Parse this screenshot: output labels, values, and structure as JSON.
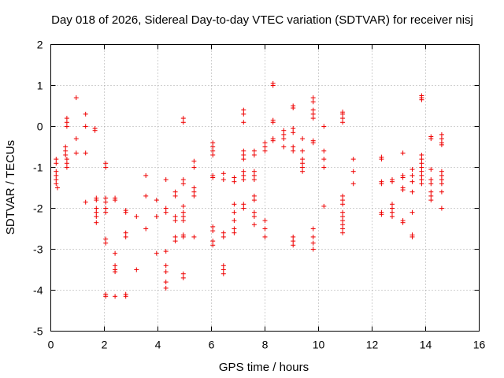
{
  "chart_data": {
    "type": "scatter",
    "title": "Day 018 of 2026, Sidereal Day-to-day VTEC variation (SDTVAR) for receiver nisj",
    "xlabel": "GPS time / hours",
    "ylabel": "SDTVAR / TECUs",
    "xlim": [
      0,
      16
    ],
    "ylim": [
      -5,
      2
    ],
    "xticks": [
      0,
      2,
      4,
      6,
      8,
      10,
      12,
      14,
      16
    ],
    "yticks": [
      -5,
      -4,
      -3,
      -2,
      -1,
      0,
      1,
      2
    ],
    "xtick_labels": [
      "0",
      "2",
      "4",
      "6",
      "8",
      "10",
      "12",
      "14",
      "16"
    ],
    "ytick_labels": [
      "-5",
      "-4",
      "-3",
      "-2",
      "-1",
      "0",
      "1",
      "2"
    ],
    "grid": true,
    "marker": "+",
    "color": "#ee0000",
    "series": [
      {
        "name": "SDTVAR",
        "points": [
          [
            0.2,
            -0.8
          ],
          [
            0.2,
            -0.9
          ],
          [
            0.2,
            -1.1
          ],
          [
            0.2,
            -1.2
          ],
          [
            0.2,
            -1.3
          ],
          [
            0.2,
            -1.4
          ],
          [
            0.25,
            -1.5
          ],
          [
            0.55,
            -0.5
          ],
          [
            0.55,
            -0.6
          ],
          [
            0.55,
            -0.7
          ],
          [
            0.6,
            -0.8
          ],
          [
            0.6,
            -0.9
          ],
          [
            0.6,
            -1.0
          ],
          [
            0.6,
            0.2
          ],
          [
            0.6,
            0.1
          ],
          [
            0.6,
            0.0
          ],
          [
            0.95,
            0.7
          ],
          [
            0.95,
            -0.3
          ],
          [
            0.95,
            -0.65
          ],
          [
            1.3,
            0.3
          ],
          [
            1.3,
            0.0
          ],
          [
            1.3,
            -0.65
          ],
          [
            1.3,
            -1.85
          ],
          [
            1.65,
            -0.05
          ],
          [
            1.65,
            -0.1
          ],
          [
            1.7,
            -1.75
          ],
          [
            1.7,
            -1.8
          ],
          [
            1.7,
            -2.0
          ],
          [
            1.7,
            -2.1
          ],
          [
            1.7,
            -2.2
          ],
          [
            1.7,
            -2.35
          ],
          [
            2.05,
            -0.9
          ],
          [
            2.05,
            -1.0
          ],
          [
            2.05,
            -1.75
          ],
          [
            2.05,
            -1.85
          ],
          [
            2.05,
            -2.0
          ],
          [
            2.05,
            -2.1
          ],
          [
            2.05,
            -2.75
          ],
          [
            2.05,
            -2.85
          ],
          [
            2.05,
            -4.1
          ],
          [
            2.05,
            -4.15
          ],
          [
            2.4,
            -1.75
          ],
          [
            2.4,
            -1.8
          ],
          [
            2.4,
            -3.1
          ],
          [
            2.4,
            -3.4
          ],
          [
            2.4,
            -3.5
          ],
          [
            2.4,
            -3.55
          ],
          [
            2.4,
            -4.15
          ],
          [
            2.8,
            -2.05
          ],
          [
            2.8,
            -2.1
          ],
          [
            2.8,
            -2.6
          ],
          [
            2.8,
            -2.7
          ],
          [
            2.8,
            -4.1
          ],
          [
            2.8,
            -4.15
          ],
          [
            3.2,
            -2.2
          ],
          [
            3.2,
            -3.5
          ],
          [
            3.55,
            -1.2
          ],
          [
            3.55,
            -1.7
          ],
          [
            3.55,
            -2.5
          ],
          [
            3.95,
            -1.8
          ],
          [
            3.95,
            -2.2
          ],
          [
            3.95,
            -3.1
          ],
          [
            4.3,
            -1.3
          ],
          [
            4.3,
            -2.0
          ],
          [
            4.3,
            -2.1
          ],
          [
            4.3,
            -3.05
          ],
          [
            4.3,
            -3.4
          ],
          [
            4.3,
            -3.55
          ],
          [
            4.3,
            -3.8
          ],
          [
            4.3,
            -3.95
          ],
          [
            4.65,
            -1.6
          ],
          [
            4.65,
            -1.7
          ],
          [
            4.65,
            -2.2
          ],
          [
            4.65,
            -2.3
          ],
          [
            4.65,
            -2.7
          ],
          [
            4.65,
            -2.8
          ],
          [
            4.95,
            0.2
          ],
          [
            4.95,
            0.1
          ],
          [
            4.95,
            -1.3
          ],
          [
            4.95,
            -1.4
          ],
          [
            4.95,
            -1.95
          ],
          [
            4.95,
            -2.1
          ],
          [
            4.95,
            -2.2
          ],
          [
            4.95,
            -2.3
          ],
          [
            4.95,
            -2.65
          ],
          [
            4.95,
            -2.7
          ],
          [
            4.95,
            -3.6
          ],
          [
            4.95,
            -3.7
          ],
          [
            5.35,
            -0.85
          ],
          [
            5.35,
            -1.0
          ],
          [
            5.35,
            -1.5
          ],
          [
            5.35,
            -1.6
          ],
          [
            5.35,
            -1.7
          ],
          [
            5.35,
            -2.7
          ],
          [
            6.05,
            -0.4
          ],
          [
            6.05,
            -0.5
          ],
          [
            6.05,
            -0.6
          ],
          [
            6.05,
            -0.7
          ],
          [
            6.05,
            -1.2
          ],
          [
            6.05,
            -1.25
          ],
          [
            6.05,
            -2.45
          ],
          [
            6.05,
            -2.55
          ],
          [
            6.05,
            -2.8
          ],
          [
            6.05,
            -2.9
          ],
          [
            6.45,
            -1.15
          ],
          [
            6.45,
            -1.3
          ],
          [
            6.45,
            -2.6
          ],
          [
            6.45,
            -2.7
          ],
          [
            6.45,
            -3.4
          ],
          [
            6.45,
            -3.5
          ],
          [
            6.45,
            -3.6
          ],
          [
            6.85,
            -1.25
          ],
          [
            6.85,
            -1.35
          ],
          [
            6.85,
            -1.9
          ],
          [
            6.85,
            -2.1
          ],
          [
            6.85,
            -2.3
          ],
          [
            6.85,
            -2.5
          ],
          [
            6.85,
            -2.6
          ],
          [
            7.2,
            0.4
          ],
          [
            7.2,
            0.3
          ],
          [
            7.2,
            0.1
          ],
          [
            7.2,
            -0.6
          ],
          [
            7.2,
            -0.7
          ],
          [
            7.2,
            -0.8
          ],
          [
            7.2,
            -1.1
          ],
          [
            7.2,
            -1.2
          ],
          [
            7.2,
            -1.3
          ],
          [
            7.2,
            -1.9
          ],
          [
            7.2,
            -2.0
          ],
          [
            7.6,
            -0.6
          ],
          [
            7.6,
            -0.7
          ],
          [
            7.6,
            -1.1
          ],
          [
            7.6,
            -1.2
          ],
          [
            7.6,
            -1.3
          ],
          [
            7.6,
            -1.7
          ],
          [
            7.6,
            -1.8
          ],
          [
            7.6,
            -2.1
          ],
          [
            7.6,
            -2.2
          ],
          [
            7.6,
            -2.4
          ],
          [
            8.0,
            -0.4
          ],
          [
            8.0,
            -0.5
          ],
          [
            8.0,
            -0.6
          ],
          [
            8.0,
            -2.3
          ],
          [
            8.0,
            -2.5
          ],
          [
            8.0,
            -2.7
          ],
          [
            8.3,
            1.0
          ],
          [
            8.3,
            1.05
          ],
          [
            8.3,
            0.1
          ],
          [
            8.3,
            0.15
          ],
          [
            8.3,
            -0.3
          ],
          [
            8.3,
            -0.35
          ],
          [
            8.7,
            -0.1
          ],
          [
            8.7,
            -0.2
          ],
          [
            8.7,
            -0.3
          ],
          [
            8.7,
            -0.5
          ],
          [
            9.05,
            0.5
          ],
          [
            9.05,
            0.45
          ],
          [
            9.05,
            -0.05
          ],
          [
            9.05,
            -0.15
          ],
          [
            9.05,
            -0.5
          ],
          [
            9.05,
            -0.6
          ],
          [
            9.05,
            -2.7
          ],
          [
            9.05,
            -2.8
          ],
          [
            9.05,
            -2.9
          ],
          [
            9.4,
            -0.3
          ],
          [
            9.4,
            -0.6
          ],
          [
            9.4,
            -0.8
          ],
          [
            9.4,
            -0.9
          ],
          [
            9.4,
            -1.0
          ],
          [
            9.4,
            -1.1
          ],
          [
            9.8,
            0.7
          ],
          [
            9.8,
            0.6
          ],
          [
            9.8,
            0.4
          ],
          [
            9.8,
            0.3
          ],
          [
            9.8,
            0.2
          ],
          [
            9.8,
            -0.35
          ],
          [
            9.8,
            -0.4
          ],
          [
            9.8,
            -2.5
          ],
          [
            9.8,
            -2.7
          ],
          [
            9.8,
            -2.85
          ],
          [
            9.8,
            -3.0
          ],
          [
            10.2,
            0.0
          ],
          [
            10.2,
            -0.6
          ],
          [
            10.2,
            -0.8
          ],
          [
            10.2,
            -1.0
          ],
          [
            10.2,
            -1.95
          ],
          [
            10.9,
            0.35
          ],
          [
            10.9,
            0.3
          ],
          [
            10.9,
            0.2
          ],
          [
            10.9,
            0.1
          ],
          [
            10.9,
            -1.7
          ],
          [
            10.9,
            -1.8
          ],
          [
            10.9,
            -1.9
          ],
          [
            10.9,
            -2.1
          ],
          [
            10.9,
            -2.2
          ],
          [
            10.9,
            -2.3
          ],
          [
            10.9,
            -2.4
          ],
          [
            10.9,
            -2.5
          ],
          [
            10.9,
            -2.6
          ],
          [
            11.3,
            -0.8
          ],
          [
            11.3,
            -1.1
          ],
          [
            11.3,
            -1.4
          ],
          [
            12.35,
            -0.75
          ],
          [
            12.35,
            -0.8
          ],
          [
            12.35,
            -1.35
          ],
          [
            12.35,
            -1.4
          ],
          [
            12.35,
            -2.1
          ],
          [
            12.35,
            -2.15
          ],
          [
            12.75,
            -1.3
          ],
          [
            12.75,
            -1.35
          ],
          [
            12.75,
            -1.9
          ],
          [
            12.75,
            -2.0
          ],
          [
            12.75,
            -2.1
          ],
          [
            12.75,
            -2.2
          ],
          [
            13.15,
            -0.65
          ],
          [
            13.15,
            -1.2
          ],
          [
            13.15,
            -1.25
          ],
          [
            13.15,
            -1.5
          ],
          [
            13.15,
            -1.55
          ],
          [
            13.15,
            -2.3
          ],
          [
            13.15,
            -2.35
          ],
          [
            13.5,
            -1.05
          ],
          [
            13.5,
            -1.2
          ],
          [
            13.5,
            -1.35
          ],
          [
            13.5,
            -1.6
          ],
          [
            13.5,
            -2.1
          ],
          [
            13.5,
            -2.65
          ],
          [
            13.5,
            -2.7
          ],
          [
            13.85,
            0.75
          ],
          [
            13.85,
            0.7
          ],
          [
            13.85,
            0.65
          ],
          [
            13.85,
            -0.7
          ],
          [
            13.85,
            -0.8
          ],
          [
            13.85,
            -0.9
          ],
          [
            13.85,
            -1.0
          ],
          [
            13.85,
            -1.1
          ],
          [
            13.85,
            -1.2
          ],
          [
            13.85,
            -1.3
          ],
          [
            13.85,
            -1.4
          ],
          [
            14.2,
            -0.25
          ],
          [
            14.2,
            -0.3
          ],
          [
            14.2,
            -1.05
          ],
          [
            14.2,
            -1.3
          ],
          [
            14.2,
            -1.4
          ],
          [
            14.2,
            -1.6
          ],
          [
            14.2,
            -1.7
          ],
          [
            14.2,
            -1.8
          ],
          [
            14.6,
            -0.2
          ],
          [
            14.6,
            -0.3
          ],
          [
            14.6,
            -0.4
          ],
          [
            14.6,
            -0.45
          ],
          [
            14.6,
            -1.1
          ],
          [
            14.6,
            -1.2
          ],
          [
            14.6,
            -1.3
          ],
          [
            14.6,
            -1.4
          ],
          [
            14.6,
            -1.6
          ],
          [
            14.6,
            -2.0
          ]
        ]
      }
    ]
  }
}
